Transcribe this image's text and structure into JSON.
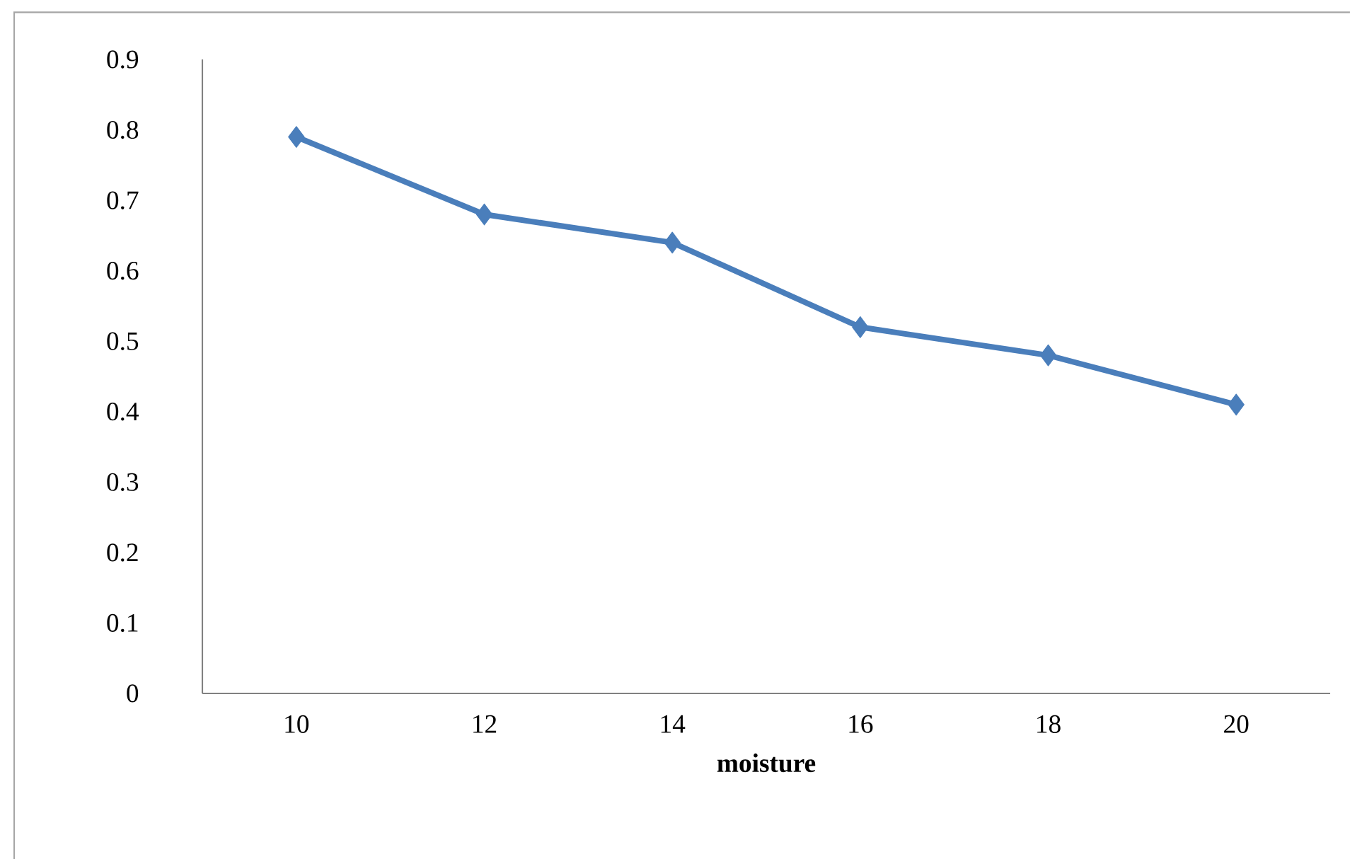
{
  "chart_data": {
    "type": "line",
    "xlabel": "moisture",
    "categories": [
      "10",
      "12",
      "14",
      "16",
      "18",
      "20"
    ],
    "values": [
      0.79,
      0.68,
      0.64,
      0.52,
      0.48,
      0.41
    ],
    "color": "#4a7ebb",
    "marker": "diamond",
    "line_style": "solid",
    "grid": false,
    "ylim": [
      0,
      0.9
    ],
    "yticks": [
      0,
      0.1,
      0.2,
      0.3,
      0.4,
      0.5,
      0.6,
      0.7,
      0.8,
      0.9
    ]
  }
}
